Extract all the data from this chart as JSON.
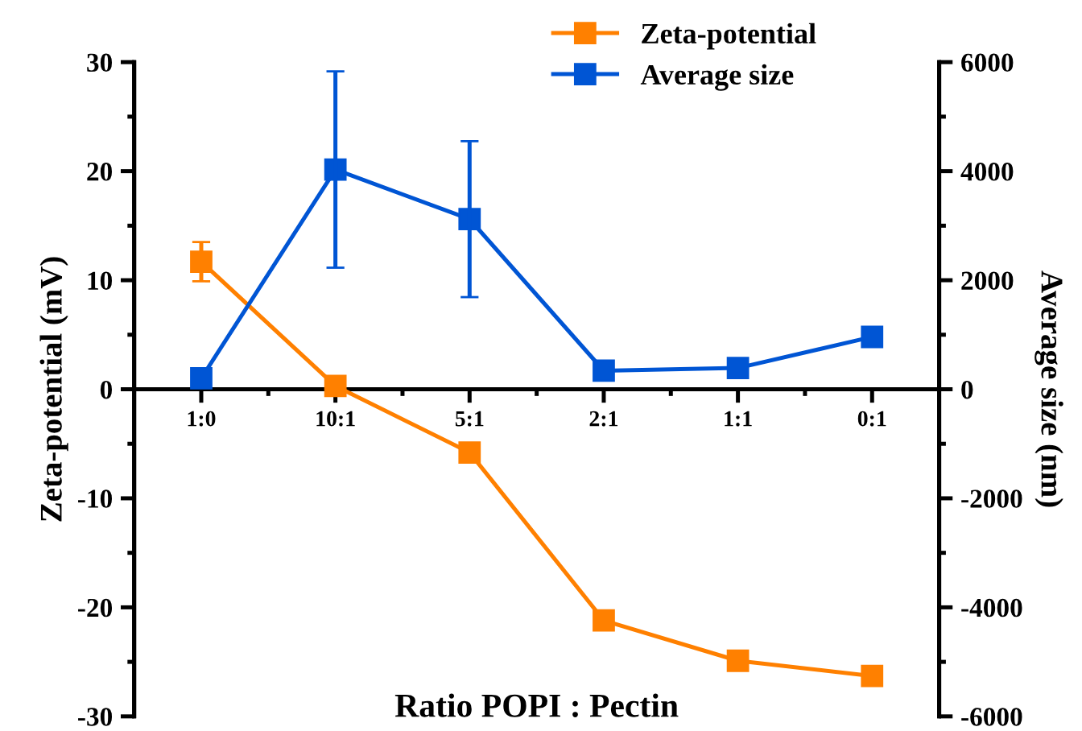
{
  "chart_data": {
    "type": "line",
    "categories": [
      "1:0",
      "10:1",
      "5:1",
      "2:1",
      "1:1",
      "0:1"
    ],
    "xlabel": "Ratio POPI : Pectin",
    "ylabel": "Zeta-potential (mV)",
    "y2label": "Average size (nm)",
    "series": [
      {
        "name": "Zeta-potential",
        "color": "#ff8000",
        "values": [
          11.7,
          0.3,
          -5.8,
          -21.2,
          -24.9,
          -26.3
        ],
        "errors": [
          1.8,
          null,
          null,
          null,
          null,
          null
        ]
      },
      {
        "name": "Average size",
        "color": "#0055d4",
        "axis": "y2",
        "values": [
          200,
          4030,
          3120,
          340,
          390,
          960
        ],
        "errors": [
          null,
          1800,
          1430,
          null,
          null,
          null
        ]
      }
    ],
    "ylim": [
      -30,
      30
    ],
    "yticks": [
      -30,
      -20,
      -10,
      0,
      10,
      20,
      30
    ],
    "y2lim": [
      -6000,
      6000
    ],
    "y2ticks": [
      -6000,
      -4000,
      -2000,
      0,
      2000,
      4000,
      6000
    ],
    "marker": "square",
    "line_style": "solid",
    "grid": false,
    "legend": "top right"
  }
}
